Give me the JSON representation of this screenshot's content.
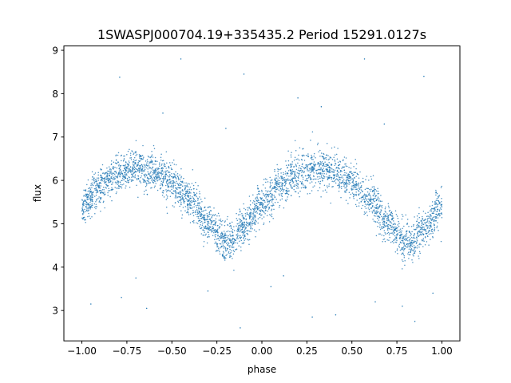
{
  "chart_data": {
    "type": "scatter",
    "title": "1SWASPJ000704.19+335435.2 Period 15291.0127s",
    "xlabel": "phase",
    "ylabel": "flux",
    "xlim": [
      -1.1,
      1.1
    ],
    "ylim": [
      2.3,
      9.1
    ],
    "grid": false,
    "x_ticks": [
      -1.0,
      -0.75,
      -0.5,
      -0.25,
      0.0,
      0.25,
      0.5,
      0.75,
      1.0
    ],
    "x_tick_labels": [
      "−1.00",
      "−0.75",
      "−0.50",
      "−0.25",
      "0.00",
      "0.25",
      "0.50",
      "0.75",
      "1.00"
    ],
    "y_ticks": [
      3,
      4,
      5,
      6,
      7,
      8,
      9
    ],
    "y_tick_labels": [
      "3",
      "4",
      "5",
      "6",
      "7",
      "8",
      "9"
    ],
    "series": [
      {
        "color": "#1f77b4",
        "marker_size": 1,
        "profile": {
          "phase": [
            -1.0,
            -0.9,
            -0.8,
            -0.7,
            -0.6,
            -0.5,
            -0.4,
            -0.3,
            -0.2,
            -0.17,
            -0.1,
            0.0,
            0.1,
            0.2,
            0.3,
            0.4,
            0.5,
            0.6,
            0.7,
            0.8,
            0.83,
            0.9,
            1.0
          ],
          "flux": [
            5.4,
            5.85,
            6.15,
            6.3,
            6.2,
            5.95,
            5.55,
            5.0,
            4.6,
            4.55,
            4.95,
            5.45,
            5.85,
            6.15,
            6.3,
            6.2,
            5.95,
            5.55,
            5.0,
            4.6,
            4.55,
            4.9,
            5.4
          ],
          "scatter_sd": 0.22
        },
        "outliers": [
          [
            -0.45,
            8.8
          ],
          [
            -0.1,
            8.45
          ],
          [
            0.9,
            8.4
          ],
          [
            0.57,
            8.8
          ],
          [
            -0.79,
            8.38
          ],
          [
            0.2,
            7.9
          ],
          [
            -0.95,
            3.15
          ],
          [
            -0.78,
            3.3
          ],
          [
            -0.64,
            3.05
          ],
          [
            -0.3,
            3.45
          ],
          [
            -0.12,
            2.6
          ],
          [
            0.05,
            3.55
          ],
          [
            0.28,
            2.85
          ],
          [
            0.41,
            2.9
          ],
          [
            0.63,
            3.2
          ],
          [
            0.78,
            3.1
          ],
          [
            0.85,
            2.75
          ],
          [
            0.95,
            3.4
          ],
          [
            -0.55,
            7.55
          ],
          [
            0.33,
            7.7
          ],
          [
            -0.2,
            7.2
          ],
          [
            0.68,
            7.3
          ],
          [
            -0.7,
            3.75
          ],
          [
            0.12,
            3.8
          ]
        ]
      }
    ]
  }
}
